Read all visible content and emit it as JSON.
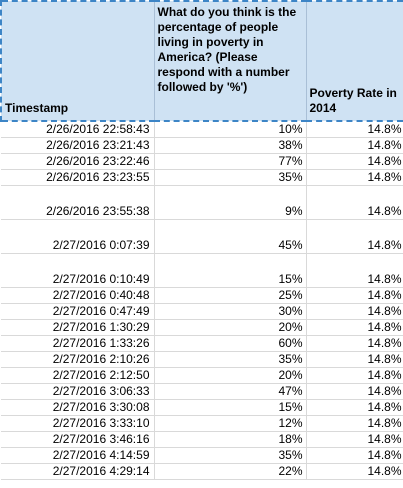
{
  "headers": {
    "timestamp": "Timestamp",
    "question": "What do you think is the percentage of people living in poverty in America? (Please respond with a number followed by '%')",
    "poverty_rate": "Poverty Rate in 2014"
  },
  "rows": [
    {
      "timestamp": "2/26/2016 22:58:43",
      "guess": "10%",
      "rate": "14.8%",
      "tall": false
    },
    {
      "timestamp": "2/26/2016 23:21:43",
      "guess": "38%",
      "rate": "14.8%",
      "tall": false
    },
    {
      "timestamp": "2/26/2016 23:22:46",
      "guess": "77%",
      "rate": "14.8%",
      "tall": false
    },
    {
      "timestamp": "2/26/2016 23:23:55",
      "guess": "35%",
      "rate": "14.8%",
      "tall": false
    },
    {
      "timestamp": "2/26/2016 23:55:38",
      "guess": "9%",
      "rate": "14.8%",
      "tall": true
    },
    {
      "timestamp": "2/27/2016 0:07:39",
      "guess": "45%",
      "rate": "14.8%",
      "tall": true
    },
    {
      "timestamp": "2/27/2016 0:10:49",
      "guess": "15%",
      "rate": "14.8%",
      "tall": true
    },
    {
      "timestamp": "2/27/2016 0:40:48",
      "guess": "25%",
      "rate": "14.8%",
      "tall": false
    },
    {
      "timestamp": "2/27/2016 0:47:49",
      "guess": "30%",
      "rate": "14.8%",
      "tall": false
    },
    {
      "timestamp": "2/27/2016 1:30:29",
      "guess": "20%",
      "rate": "14.8%",
      "tall": false
    },
    {
      "timestamp": "2/27/2016 1:33:26",
      "guess": "60%",
      "rate": "14.8%",
      "tall": false
    },
    {
      "timestamp": "2/27/2016 2:10:26",
      "guess": "35%",
      "rate": "14.8%",
      "tall": false
    },
    {
      "timestamp": "2/27/2016 2:12:50",
      "guess": "20%",
      "rate": "14.8%",
      "tall": false
    },
    {
      "timestamp": "2/27/2016 3:06:33",
      "guess": "47%",
      "rate": "14.8%",
      "tall": false
    },
    {
      "timestamp": "2/27/2016 3:30:08",
      "guess": "15%",
      "rate": "14.8%",
      "tall": false
    },
    {
      "timestamp": "2/27/2016 3:33:10",
      "guess": "12%",
      "rate": "14.8%",
      "tall": false
    },
    {
      "timestamp": "2/27/2016 3:46:16",
      "guess": "18%",
      "rate": "14.8%",
      "tall": false
    },
    {
      "timestamp": "2/27/2016 4:14:59",
      "guess": "35%",
      "rate": "14.8%",
      "tall": false
    },
    {
      "timestamp": "2/27/2016 4:29:14",
      "guess": "22%",
      "rate": "14.8%",
      "tall": false
    }
  ]
}
